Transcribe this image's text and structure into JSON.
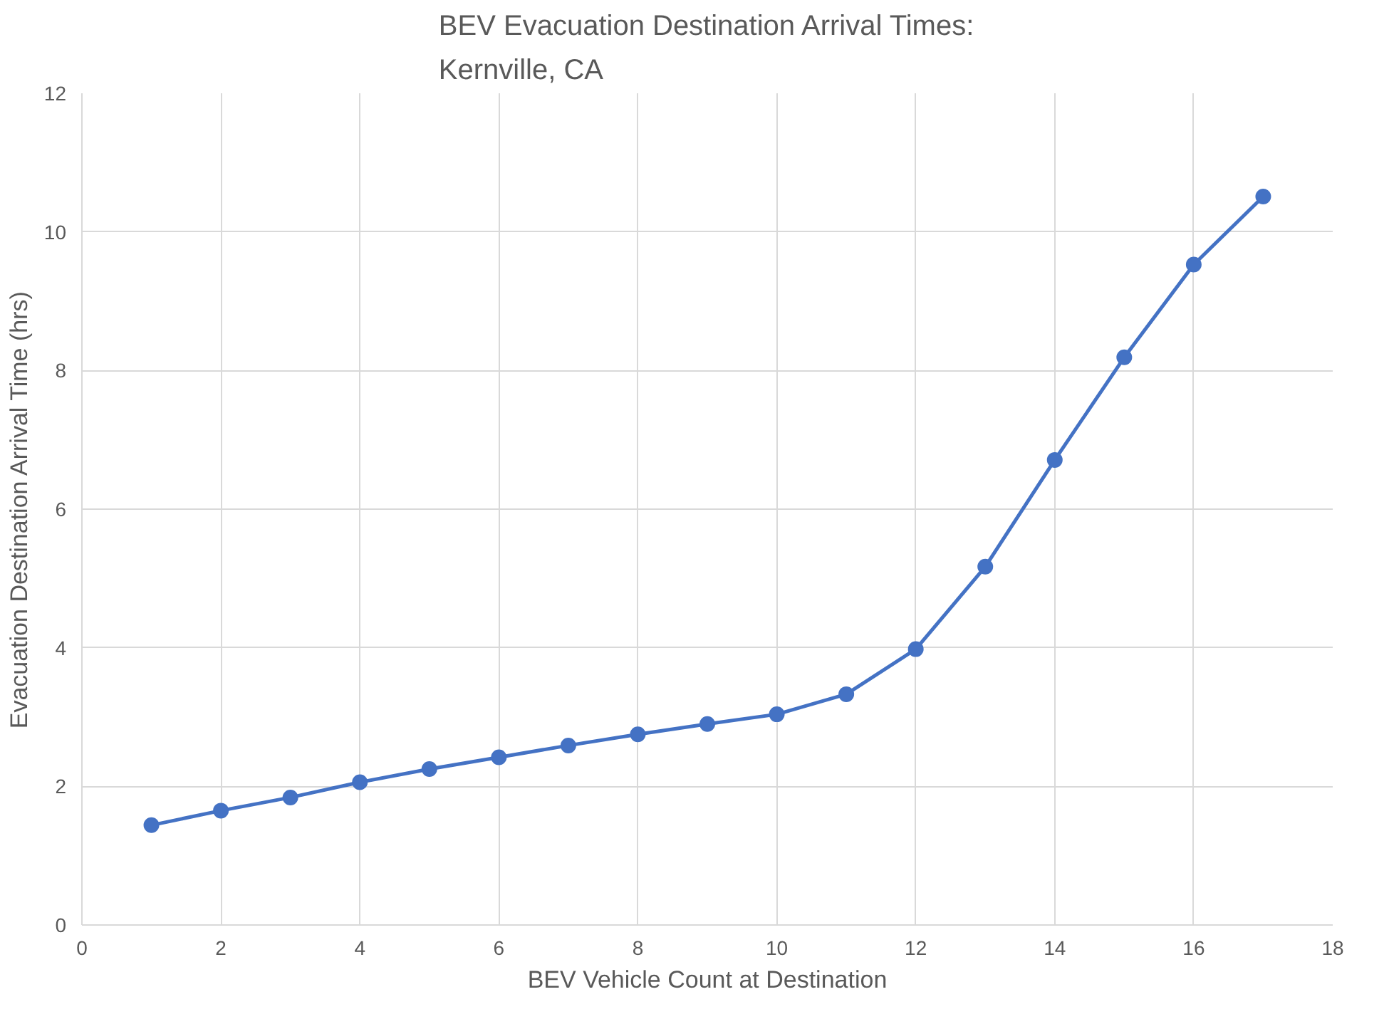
{
  "chart_data": {
    "type": "line",
    "title": "BEV Evacuation Destination Arrival Times:\nKernville, CA",
    "xlabel": "BEV Vehicle Count at Destination",
    "ylabel": "Evacuation Destination Arrival Time (hrs)",
    "x": [
      1,
      2,
      3,
      4,
      5,
      6,
      7,
      8,
      9,
      10,
      11,
      12,
      13,
      14,
      15,
      16,
      17
    ],
    "series": [
      {
        "color": "#4472c4",
        "values": [
          1.44,
          1.65,
          1.84,
          2.06,
          2.25,
          2.42,
          2.59,
          2.75,
          2.9,
          3.04,
          3.33,
          3.98,
          5.17,
          6.71,
          8.19,
          9.53,
          10.51
        ]
      }
    ],
    "xlim": [
      0,
      18
    ],
    "xticks": [
      0,
      2,
      4,
      6,
      8,
      10,
      12,
      14,
      16,
      18
    ],
    "ylim": [
      0,
      12
    ],
    "yticks": [
      0,
      2,
      4,
      6,
      8,
      10,
      12
    ],
    "grid": true,
    "marker": "circle",
    "line_style": "solid"
  }
}
